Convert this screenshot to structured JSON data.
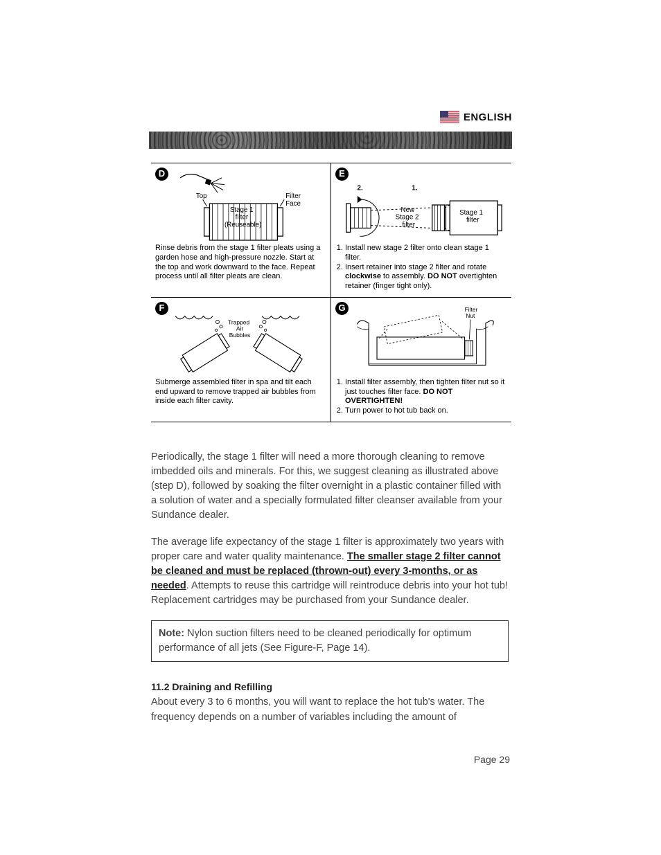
{
  "header": {
    "language": "ENGLISH"
  },
  "panels": {
    "D": {
      "letter": "D",
      "labels": {
        "top": "Top",
        "stage1_l1": "Stage 1",
        "stage1_l2": "filter",
        "stage1_l3": "(Reuseable)",
        "face_l1": "Filter",
        "face_l2": "Face"
      },
      "caption": "Rinse debris from the stage 1 filter pleats using a garden hose and high-pressure nozzle. Start at the top and work downward to the face. Repeat process until all filter pleats are clean."
    },
    "E": {
      "letter": "E",
      "labels": {
        "n2": "2.",
        "n1": "1.",
        "new_l1": "New",
        "new_l2": "Stage 2",
        "new_l3": "filter",
        "s1_l1": "Stage 1",
        "s1_l2": "filter"
      },
      "caption_items": [
        "Install new stage 2 filter onto clean stage 1 filter.",
        "Insert retainer into stage 2 filter and rotate <b>clockwise</b> to assembly.  <b>DO NOT</b> overtighten retainer (finger tight only)."
      ]
    },
    "F": {
      "letter": "F",
      "labels": {
        "l1": "Trapped",
        "l2": "Air",
        "l3": "Bubbles"
      },
      "caption": "Submerge assembled filter in spa and tilt each end upward to remove trapped air bubbles from inside each filter cavity."
    },
    "G": {
      "letter": "G",
      "labels": {
        "l1": "Filter",
        "l2": "Nut"
      },
      "caption_items": [
        "Install filter assembly, then tighten filter nut so it just touches filter face.  <b>DO NOT OVERTIGHTEN!</b>",
        "Turn power to hot tub back on."
      ]
    }
  },
  "body": {
    "p1": "Periodically, the stage 1 filter will need a more thorough cleaning to remove imbedded oils and minerals. For this, we suggest cleaning as illustrated above (step D), followed by soaking the filter overnight in a plastic container filled with a solution of water and a specially formulated filter cleanser available from your Sundance dealer.",
    "p2_a": "The average life expectancy of the stage 1 filter is approximately two years with proper care and water quality maintenance.  ",
    "p2_bold": "The smaller stage 2 filter cannot be cleaned and must be replaced (thrown-out) every 3-months, or as needed",
    "p2_b": ".  Attempts to reuse this cartridge will reintroduce debris into your hot tub!  Replacement cartridges may be purchased from your Sundance dealer.",
    "note_label": "Note:",
    "note_text": " Nylon suction filters need to be cleaned periodically for optimum performance of all jets (See Figure-F, Page 14).",
    "section": "11.2  Draining and Refilling",
    "p3": "About every 3 to 6 months, you will want to replace the hot tub's water. The frequency depends on a number of variables including the amount of"
  },
  "page_number": "Page 29",
  "colors": {
    "text": "#333333",
    "rule": "#000000",
    "flag_red": "#b22234",
    "flag_blue": "#3c3b6e",
    "flag_white": "#ffffff"
  }
}
